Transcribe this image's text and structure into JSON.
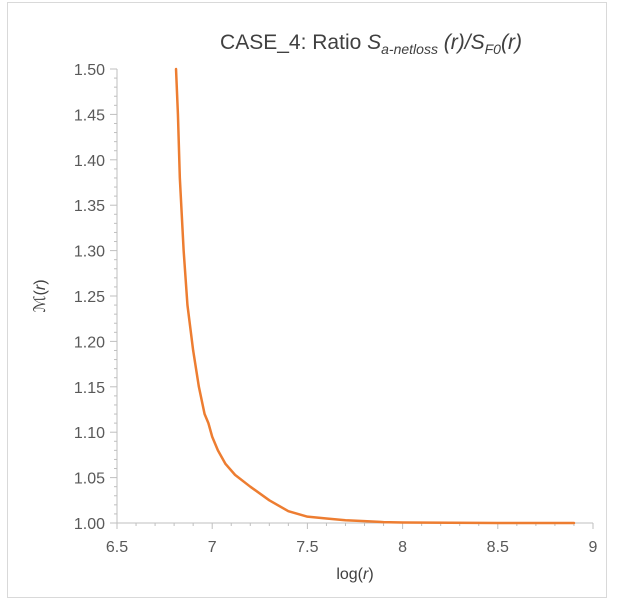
{
  "chart_data": {
    "type": "line",
    "title": {
      "prefix": "CASE_4: Ratio ",
      "s1": "S",
      "s1_sub": "a-netloss",
      "mid": " (r)/",
      "s2": "S",
      "s2_sub": "F0",
      "suffix": "(r)"
    },
    "xlabel": {
      "pre": "log(",
      "var": "r",
      "post": ")"
    },
    "ylabel": {
      "sym": "ℳ",
      "pre": "(",
      "var": "r",
      "post": ")"
    },
    "xlim": [
      6.5,
      9
    ],
    "ylim": [
      1.0,
      1.5
    ],
    "x_ticks": [
      "6.5",
      "7",
      "7.5",
      "8",
      "8.5",
      "9"
    ],
    "y_ticks": [
      "1.00",
      "1.05",
      "1.10",
      "1.15",
      "1.20",
      "1.25",
      "1.30",
      "1.35",
      "1.40",
      "1.45",
      "1.50"
    ],
    "grid": false,
    "legend": "none",
    "series": [
      {
        "color": "#ed7d31",
        "x": [
          6.81,
          6.82,
          6.83,
          6.85,
          6.87,
          6.9,
          6.93,
          6.96,
          6.98,
          7.0,
          7.03,
          7.07,
          7.12,
          7.2,
          7.3,
          7.4,
          7.5,
          7.6,
          7.7,
          7.8,
          7.9,
          8.0,
          8.5,
          8.9
        ],
        "y": [
          1.5,
          1.45,
          1.38,
          1.3,
          1.24,
          1.19,
          1.15,
          1.12,
          1.11,
          1.095,
          1.08,
          1.065,
          1.053,
          1.04,
          1.025,
          1.013,
          1.007,
          1.005,
          1.003,
          1.002,
          1.001,
          1.0005,
          1.0,
          1.0
        ]
      }
    ]
  }
}
